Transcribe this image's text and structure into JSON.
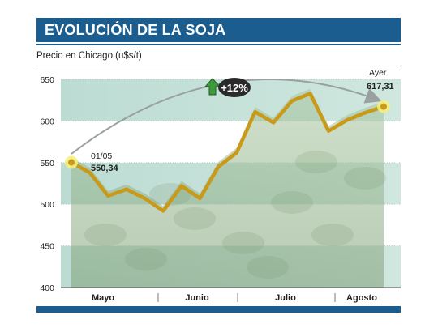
{
  "title": "EVOLUCIÓN DE LA SOJA",
  "subtitle": "Precio en Chicago (u$s/t)",
  "chart_data": {
    "type": "line",
    "title": "EVOLUCIÓN DE LA SOJA",
    "ylabel": "Precio en Chicago (u$s/t)",
    "ylim": [
      400,
      650
    ],
    "yticks": [
      400,
      450,
      500,
      550,
      600,
      650
    ],
    "months": [
      "Mayo",
      "Junio",
      "Julio",
      "Agosto"
    ],
    "x": [
      0,
      1,
      2,
      3,
      4,
      5,
      6,
      7,
      8,
      9,
      10,
      11,
      12,
      13,
      14,
      15,
      16,
      17
    ],
    "series": [
      {
        "values": [
          550.34,
          538,
          510,
          518,
          507,
          492,
          522,
          507,
          545,
          562,
          611,
          598,
          624,
          633,
          588,
          601,
          610,
          617.31
        ]
      }
    ],
    "line_color": "#c99a1a",
    "annotations": {
      "start_date": "01/05",
      "start_value": "550,34",
      "end_date": "Ayer",
      "end_value": "617,31",
      "change": "+12%"
    },
    "grid": true
  }
}
